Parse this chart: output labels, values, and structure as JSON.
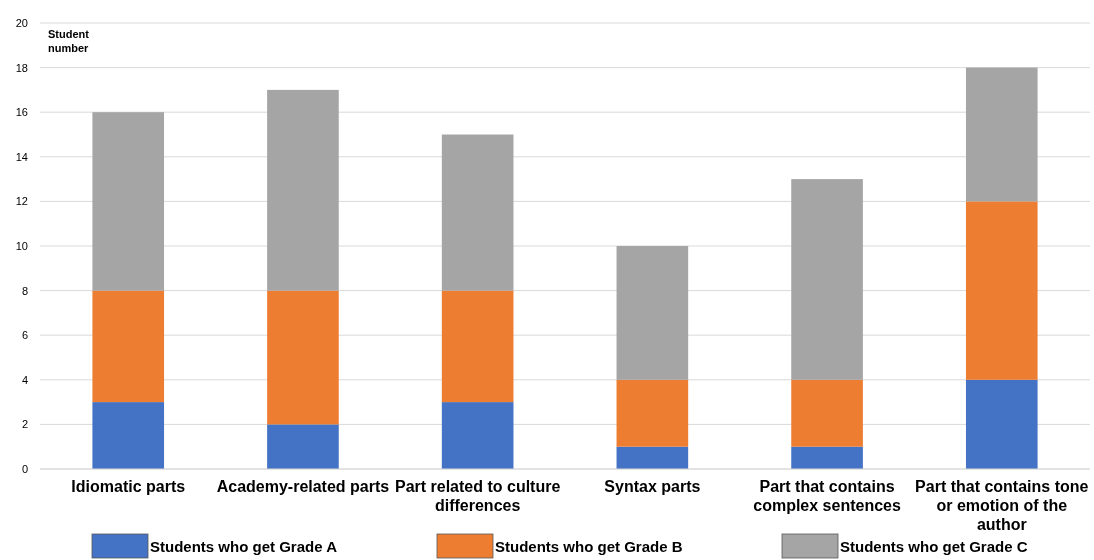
{
  "chart_data": {
    "type": "bar",
    "stacked": true,
    "ylabel": "Student number",
    "categories": [
      "Idiomatic parts",
      "Academy-related parts",
      "Part related to culture differences",
      "Syntax parts",
      "Part that contains complex sentences",
      "Part that contains tone or emotion of the author"
    ],
    "series": [
      {
        "name": "Students who get Grade A",
        "color": "#4472c4",
        "values": [
          3,
          2,
          3,
          1,
          1,
          4
        ]
      },
      {
        "name": "Students who get Grade B",
        "color": "#ed7d31",
        "values": [
          5,
          6,
          5,
          3,
          3,
          8
        ]
      },
      {
        "name": "Students who get Grade C",
        "color": "#a5a5a5",
        "values": [
          8,
          9,
          7,
          6,
          9,
          6
        ]
      }
    ],
    "ylim": [
      0,
      20
    ],
    "yticks": [
      0,
      2,
      4,
      6,
      8,
      10,
      12,
      14,
      16,
      18,
      20
    ],
    "grid": "y",
    "legend": "bottom"
  }
}
